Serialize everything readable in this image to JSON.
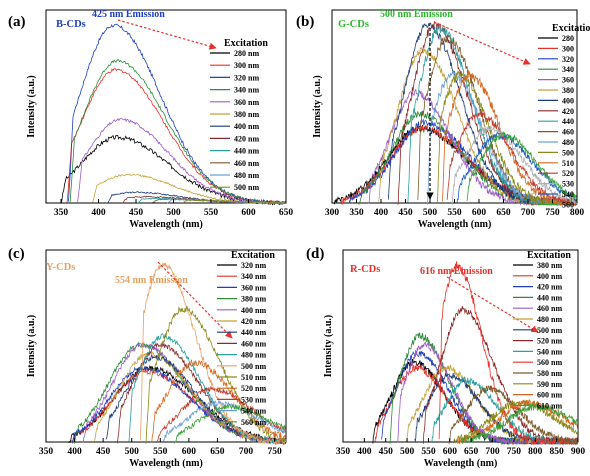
{
  "chart_data": [
    {
      "type": "line",
      "panel": "(a)",
      "sample": "B-CDs",
      "sample_color": "#1f3fbf",
      "emission_label": "425 nm Emission",
      "emission_color": "#1f3fbf",
      "xlabel": "Wavelength (nm)",
      "ylabel": "Intensity (a.u.)",
      "xlim": [
        330,
        650
      ],
      "xticks": [
        350,
        400,
        450,
        500,
        550,
        600,
        650
      ],
      "legend_title": "Excitation",
      "grid": false,
      "series": [
        {
          "name": "280 nm",
          "color": "#000000",
          "ex": 280,
          "peak": 425,
          "amp": 0.37,
          "start": 350,
          "end": 650,
          "noise": 0.012
        },
        {
          "name": "300 nm",
          "color": "#e8312a",
          "ex": 300,
          "peak": 423,
          "amp": 0.75,
          "start": 358,
          "end": 650,
          "noise": 0.008
        },
        {
          "name": "320 nm",
          "color": "#1f3fbf",
          "ex": 320,
          "peak": 420,
          "amp": 1.0,
          "start": 360,
          "end": 650,
          "noise": 0.01
        },
        {
          "name": "340 nm",
          "color": "#2e8b3a",
          "ex": 340,
          "peak": 425,
          "amp": 0.8,
          "start": 362,
          "end": 650,
          "noise": 0.008
        },
        {
          "name": "360 nm",
          "color": "#9c5cc8",
          "ex": 360,
          "peak": 430,
          "amp": 0.47,
          "start": 372,
          "end": 650,
          "noise": 0.008
        },
        {
          "name": "380 nm",
          "color": "#c7a23a",
          "ex": 380,
          "peak": 440,
          "amp": 0.16,
          "start": 392,
          "end": 650,
          "noise": 0.005
        },
        {
          "name": "400 nm",
          "color": "#1b3a7a",
          "ex": 400,
          "peak": 450,
          "amp": 0.06,
          "start": 412,
          "end": 650,
          "noise": 0.004
        },
        {
          "name": "420 nm",
          "color": "#8b2a2a",
          "ex": 420,
          "peak": 465,
          "amp": 0.035,
          "start": 432,
          "end": 650,
          "noise": 0.004
        },
        {
          "name": "440 nm",
          "color": "#2aa0a0",
          "ex": 440,
          "peak": 480,
          "amp": 0.025,
          "start": 452,
          "end": 650,
          "noise": 0.003
        },
        {
          "name": "460 nm",
          "color": "#7d5a2a",
          "ex": 460,
          "peak": 495,
          "amp": 0.02,
          "start": 472,
          "end": 650,
          "noise": 0.003
        },
        {
          "name": "480 nm",
          "color": "#6aa0d8",
          "ex": 480,
          "peak": 510,
          "amp": 0.018,
          "start": 492,
          "end": 650,
          "noise": 0.003
        },
        {
          "name": "500 nm",
          "color": "#8a8a1a",
          "ex": 500,
          "peak": 530,
          "amp": 0.015,
          "start": 512,
          "end": 650,
          "noise": 0.003
        }
      ]
    },
    {
      "type": "line",
      "panel": "(b)",
      "sample": "G-CDs",
      "sample_color": "#2eb82e",
      "emission_label": "500 nm Emission",
      "emission_color": "#2eb82e",
      "xlabel": "Wavelength (nm)",
      "ylabel": "Intensity (a.u.)",
      "xlim": [
        300,
        800
      ],
      "xticks": [
        300,
        350,
        400,
        450,
        500,
        550,
        600,
        650,
        700,
        750,
        800
      ],
      "legend_title": "Excitation",
      "grid": false,
      "series": [
        {
          "name": "280",
          "color": "#000000",
          "ex": 280,
          "peak": 480,
          "amp": 0.42,
          "start": 305,
          "end": 800,
          "noise": 0.02
        },
        {
          "name": "300",
          "color": "#e8312a",
          "ex": 300,
          "peak": 485,
          "amp": 0.42,
          "start": 318,
          "end": 800,
          "noise": 0.02
        },
        {
          "name": "320",
          "color": "#1f3fbf",
          "ex": 320,
          "peak": 490,
          "amp": 0.45,
          "start": 335,
          "end": 800,
          "noise": 0.02
        },
        {
          "name": "340",
          "color": "#2e8b3a",
          "ex": 340,
          "peak": 480,
          "amp": 0.5,
          "start": 355,
          "end": 800,
          "noise": 0.02
        },
        {
          "name": "360",
          "color": "#9c5cc8",
          "ex": 360,
          "peak": 470,
          "amp": 0.62,
          "start": 375,
          "end": 800,
          "noise": 0.02
        },
        {
          "name": "380",
          "color": "#c7a23a",
          "ex": 380,
          "peak": 485,
          "amp": 0.86,
          "start": 395,
          "end": 800,
          "noise": 0.02
        },
        {
          "name": "400",
          "color": "#1b3a7a",
          "ex": 400,
          "peak": 495,
          "amp": 1.0,
          "start": 415,
          "end": 800,
          "noise": 0.02
        },
        {
          "name": "420",
          "color": "#8b2a2a",
          "ex": 420,
          "peak": 510,
          "amp": 1.0,
          "start": 435,
          "end": 800,
          "noise": 0.025
        },
        {
          "name": "440",
          "color": "#2aa0a0",
          "ex": 440,
          "peak": 520,
          "amp": 0.98,
          "start": 455,
          "end": 800,
          "noise": 0.025
        },
        {
          "name": "460",
          "color": "#7d5a2a",
          "ex": 460,
          "peak": 535,
          "amp": 0.93,
          "start": 475,
          "end": 800,
          "noise": 0.025
        },
        {
          "name": "480",
          "color": "#6aa0d8",
          "ex": 480,
          "peak": 545,
          "amp": 0.72,
          "start": 495,
          "end": 800,
          "noise": 0.025
        },
        {
          "name": "500",
          "color": "#8a8a1a",
          "ex": 500,
          "peak": 560,
          "amp": 0.72,
          "start": 515,
          "end": 800,
          "noise": 0.025
        },
        {
          "name": "510",
          "color": "#d9661f",
          "ex": 510,
          "peak": 580,
          "amp": 0.72,
          "start": 525,
          "end": 800,
          "noise": 0.025
        },
        {
          "name": "520",
          "color": "#c0392b",
          "ex": 520,
          "peak": 600,
          "amp": 0.5,
          "start": 535,
          "end": 800,
          "noise": 0.02
        },
        {
          "name": "530",
          "color": "#b0b0b0",
          "ex": 530,
          "peak": 620,
          "amp": 0.42,
          "start": 545,
          "end": 800,
          "noise": 0.02
        },
        {
          "name": "540",
          "color": "#1f5fbf",
          "ex": 540,
          "peak": 640,
          "amp": 0.38,
          "start": 555,
          "end": 800,
          "noise": 0.02
        },
        {
          "name": "560",
          "color": "#3aa03a",
          "ex": 560,
          "peak": 650,
          "amp": 0.38,
          "start": 575,
          "end": 800,
          "noise": 0.02
        }
      ]
    },
    {
      "type": "line",
      "panel": "(c)",
      "sample": "Y-CDs",
      "sample_color": "#e8a060",
      "emission_label": "554 nm Emission",
      "emission_color": "#e8a060",
      "xlabel": "Wavelength (nm)",
      "ylabel": "Intensity (a.u.)",
      "xlim": [
        350,
        770
      ],
      "xticks": [
        350,
        400,
        450,
        500,
        550,
        600,
        650,
        700,
        750
      ],
      "legend_title": "Excitation",
      "grid": false,
      "series": [
        {
          "name": "320 nm",
          "color": "#000000",
          "ex": 320,
          "peak": 530,
          "amp": 0.42,
          "start": 390,
          "end": 770,
          "noise": 0.015
        },
        {
          "name": "340 nm",
          "color": "#e8312a",
          "ex": 340,
          "peak": 525,
          "amp": 0.4,
          "start": 395,
          "end": 770,
          "noise": 0.015
        },
        {
          "name": "360 nm",
          "color": "#1f3fbf",
          "ex": 360,
          "peak": 520,
          "amp": 0.42,
          "start": 395,
          "end": 770,
          "noise": 0.015
        },
        {
          "name": "380 nm",
          "color": "#2e8b3a",
          "ex": 380,
          "peak": 515,
          "amp": 0.55,
          "start": 400,
          "end": 770,
          "noise": 0.015
        },
        {
          "name": "400 nm",
          "color": "#9c5cc8",
          "ex": 400,
          "peak": 520,
          "amp": 0.55,
          "start": 415,
          "end": 770,
          "noise": 0.015
        },
        {
          "name": "420 nm",
          "color": "#c7a23a",
          "ex": 420,
          "peak": 530,
          "amp": 0.5,
          "start": 435,
          "end": 770,
          "noise": 0.015
        },
        {
          "name": "440 nm",
          "color": "#1b3a7a",
          "ex": 440,
          "peak": 540,
          "amp": 0.48,
          "start": 455,
          "end": 770,
          "noise": 0.015
        },
        {
          "name": "460 nm",
          "color": "#8b2a2a",
          "ex": 460,
          "peak": 550,
          "amp": 0.55,
          "start": 475,
          "end": 770,
          "noise": 0.015
        },
        {
          "name": "480 nm",
          "color": "#2aa0a0",
          "ex": 480,
          "peak": 555,
          "amp": 0.6,
          "start": 495,
          "end": 770,
          "noise": 0.015
        },
        {
          "name": "500 nm",
          "color": "#e8a060",
          "ex": 500,
          "peak": 554,
          "amp": 1.0,
          "start": 515,
          "end": 770,
          "noise": 0.02
        },
        {
          "name": "510 nm",
          "color": "#8a8a1a",
          "ex": 510,
          "peak": 590,
          "amp": 0.75,
          "start": 525,
          "end": 770,
          "noise": 0.02
        },
        {
          "name": "520 nm",
          "color": "#d9661f",
          "ex": 520,
          "peak": 610,
          "amp": 0.45,
          "start": 535,
          "end": 770,
          "noise": 0.02
        },
        {
          "name": "530 nm",
          "color": "#c0392b",
          "ex": 530,
          "peak": 640,
          "amp": 0.3,
          "start": 545,
          "end": 770,
          "noise": 0.015
        },
        {
          "name": "540 nm",
          "color": "#6aa0d8",
          "ex": 540,
          "peak": 650,
          "amp": 0.22,
          "start": 555,
          "end": 770,
          "noise": 0.015
        },
        {
          "name": "560 nm",
          "color": "#3aa03a",
          "ex": 560,
          "peak": 670,
          "amp": 0.2,
          "start": 575,
          "end": 770,
          "noise": 0.015
        }
      ]
    },
    {
      "type": "line",
      "panel": "(d)",
      "sample": "R-CDs",
      "sample_color": "#e8312a",
      "emission_label": "616 nm Emission",
      "emission_color": "#e8312a",
      "xlabel": "Wavelength (nm)",
      "ylabel": "Intensity (a.u.)",
      "xlim": [
        350,
        900
      ],
      "xticks": [
        350,
        400,
        450,
        500,
        550,
        600,
        650,
        700,
        750,
        800,
        850,
        900
      ],
      "legend_title": "Excitation",
      "grid": false,
      "series": [
        {
          "name": "380 nm",
          "color": "#000000",
          "ex": 380,
          "peak": 515,
          "amp": 0.45,
          "start": 420,
          "end": 900,
          "noise": 0.02
        },
        {
          "name": "400 nm",
          "color": "#e8312a",
          "ex": 400,
          "peak": 520,
          "amp": 0.42,
          "start": 425,
          "end": 900,
          "noise": 0.02
        },
        {
          "name": "420 nm",
          "color": "#1f3fbf",
          "ex": 420,
          "peak": 525,
          "amp": 0.5,
          "start": 440,
          "end": 900,
          "noise": 0.02
        },
        {
          "name": "440 nm",
          "color": "#2e8b3a",
          "ex": 440,
          "peak": 530,
          "amp": 0.6,
          "start": 460,
          "end": 900,
          "noise": 0.02
        },
        {
          "name": "460 nm",
          "color": "#9c5cc8",
          "ex": 460,
          "peak": 540,
          "amp": 0.55,
          "start": 478,
          "end": 900,
          "noise": 0.02
        },
        {
          "name": "480 nm",
          "color": "#c7a23a",
          "ex": 480,
          "peak": 590,
          "amp": 0.42,
          "start": 498,
          "end": 900,
          "noise": 0.02
        },
        {
          "name": "500 nm",
          "color": "#1b3a7a",
          "ex": 500,
          "peak": 600,
          "amp": 0.38,
          "start": 518,
          "end": 900,
          "noise": 0.02
        },
        {
          "name": "520 nm",
          "color": "#8b2a2a",
          "ex": 520,
          "peak": 630,
          "amp": 0.75,
          "start": 538,
          "end": 900,
          "noise": 0.02
        },
        {
          "name": "540 nm",
          "color": "#2aa0a0",
          "ex": 540,
          "peak": 640,
          "amp": 0.35,
          "start": 558,
          "end": 900,
          "noise": 0.02
        },
        {
          "name": "560 nm",
          "color": "#e8312a",
          "ex": 560,
          "peak": 616,
          "amp": 1.0,
          "start": 575,
          "end": 900,
          "noise": 0.025
        },
        {
          "name": "580 nm",
          "color": "#7d5a2a",
          "ex": 580,
          "peak": 690,
          "amp": 0.3,
          "start": 598,
          "end": 900,
          "noise": 0.02
        },
        {
          "name": "590 nm",
          "color": "#8a8a1a",
          "ex": 590,
          "peak": 760,
          "amp": 0.22,
          "start": 608,
          "end": 900,
          "noise": 0.02
        },
        {
          "name": "600 nm",
          "color": "#d9661f",
          "ex": 600,
          "peak": 780,
          "amp": 0.22,
          "start": 618,
          "end": 900,
          "noise": 0.02
        },
        {
          "name": "610 nm",
          "color": "#3aa03a",
          "ex": 610,
          "peak": 800,
          "amp": 0.2,
          "start": 628,
          "end": 900,
          "noise": 0.02
        }
      ]
    }
  ]
}
